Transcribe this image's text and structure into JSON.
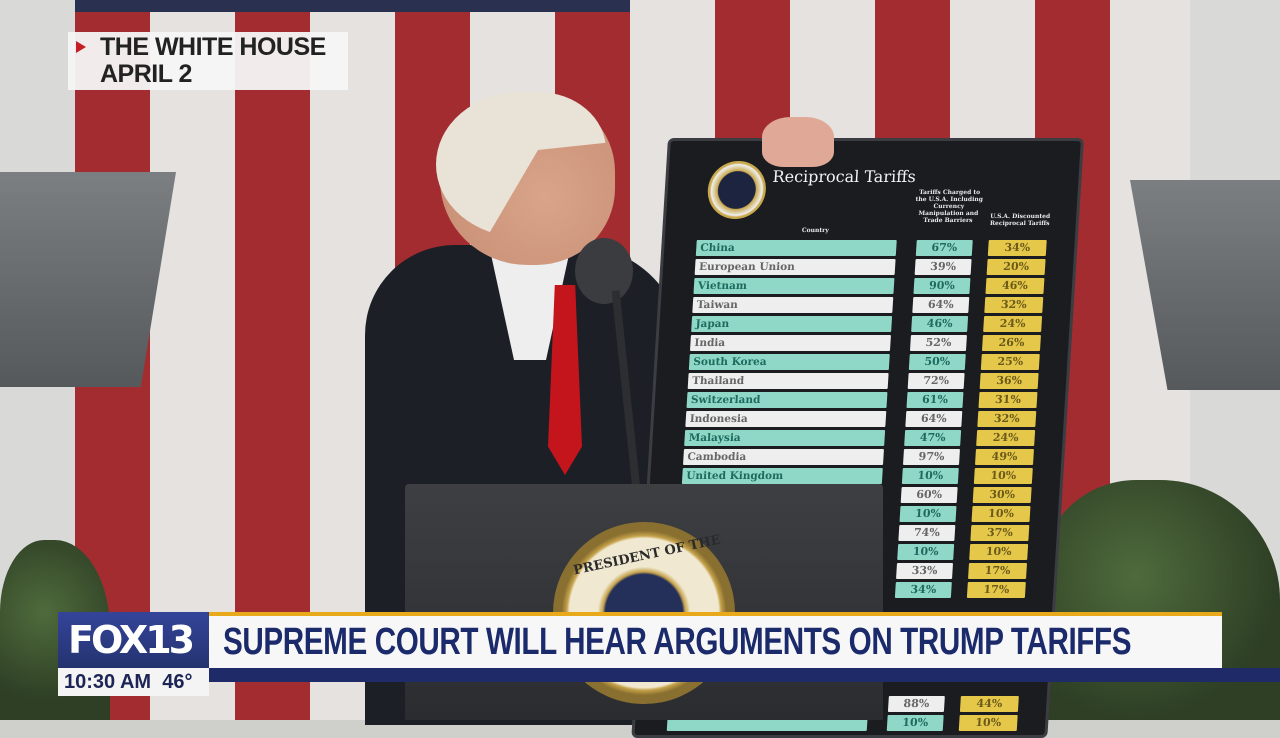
{
  "location_tag": {
    "icon": "play-triangle-icon",
    "line1": "THE WHITE HOUSE",
    "line2": "APRIL 2"
  },
  "board": {
    "title": "Reciprocal Tariffs",
    "col_country": "Country",
    "col_charged": "Tariffs Charged to the U.S.A. Including Currency Manipulation and Trade Barriers",
    "col_discounted": "U.S.A. Discounted Reciprocal Tariffs",
    "rows": [
      {
        "country": "China",
        "charged": "67%",
        "reciprocal": "34%"
      },
      {
        "country": "European Union",
        "charged": "39%",
        "reciprocal": "20%"
      },
      {
        "country": "Vietnam",
        "charged": "90%",
        "reciprocal": "46%"
      },
      {
        "country": "Taiwan",
        "charged": "64%",
        "reciprocal": "32%"
      },
      {
        "country": "Japan",
        "charged": "46%",
        "reciprocal": "24%"
      },
      {
        "country": "India",
        "charged": "52%",
        "reciprocal": "26%"
      },
      {
        "country": "South Korea",
        "charged": "50%",
        "reciprocal": "25%"
      },
      {
        "country": "Thailand",
        "charged": "72%",
        "reciprocal": "36%"
      },
      {
        "country": "Switzerland",
        "charged": "61%",
        "reciprocal": "31%"
      },
      {
        "country": "Indonesia",
        "charged": "64%",
        "reciprocal": "32%"
      },
      {
        "country": "Malaysia",
        "charged": "47%",
        "reciprocal": "24%"
      },
      {
        "country": "Cambodia",
        "charged": "97%",
        "reciprocal": "49%"
      },
      {
        "country": "United Kingdom",
        "charged": "10%",
        "reciprocal": "10%"
      },
      {
        "country": "",
        "charged": "60%",
        "reciprocal": "30%"
      },
      {
        "country": "",
        "charged": "10%",
        "reciprocal": "10%"
      },
      {
        "country": "",
        "charged": "74%",
        "reciprocal": "37%"
      },
      {
        "country": "",
        "charged": "10%",
        "reciprocal": "10%"
      },
      {
        "country": "",
        "charged": "33%",
        "reciprocal": "17%"
      },
      {
        "country": "",
        "charged": "34%",
        "reciprocal": "17%"
      },
      {
        "country": "",
        "charged": "",
        "reciprocal": ""
      },
      {
        "country": "",
        "charged": "",
        "reciprocal": ""
      },
      {
        "country": "",
        "charged": "88%",
        "reciprocal": "44%"
      },
      {
        "country": "",
        "charged": "10%",
        "reciprocal": "10%"
      }
    ]
  },
  "podium": {
    "seal_text": "PRESIDENT OF THE UNITED STATES"
  },
  "lower_third": {
    "logo": "FOX13",
    "time": "10:30 AM",
    "temperature": "46°",
    "headline": "SUPREME COURT WILL HEAR ARGUMENTS ON TRUMP TARIFFS",
    "colors": {
      "navy": "#1f2b68",
      "gold": "#e8a91b",
      "logo_blue": "#2f3f8c"
    }
  }
}
